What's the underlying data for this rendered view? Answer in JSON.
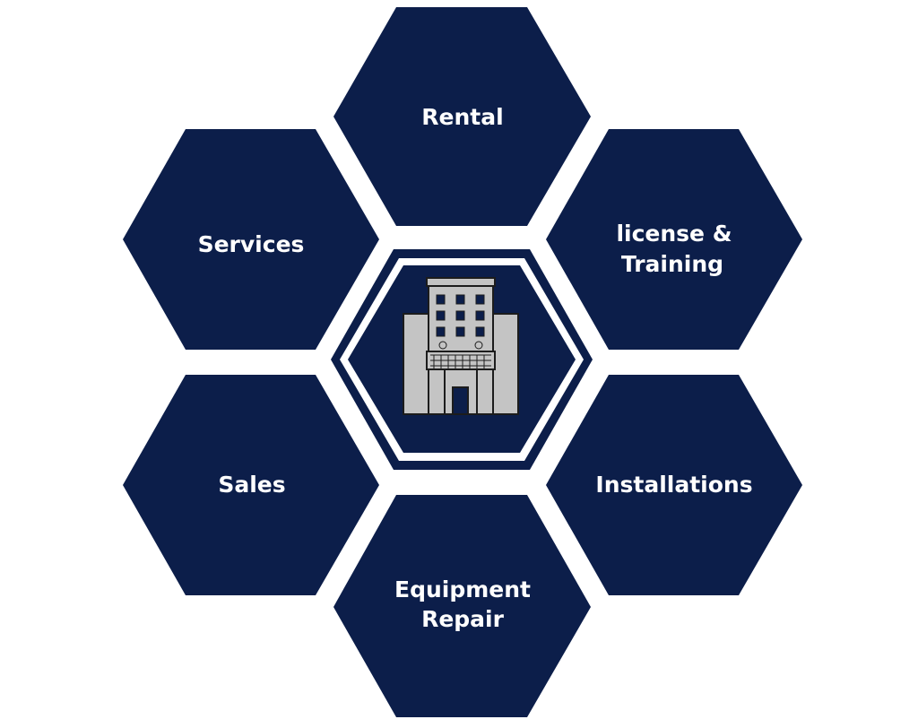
{
  "diagram": {
    "colors": {
      "hex_fill": "#0c1e4a",
      "background": "#ffffff",
      "building_fill": "#c4c4c4",
      "building_outline": "#1c1c1c",
      "label": "#ffffff"
    },
    "center_icon": "building-icon",
    "hexagons": {
      "rental": {
        "line1": "Rental"
      },
      "license": {
        "line1": "license &",
        "line2": "Training"
      },
      "services": {
        "line1": "Services"
      },
      "installations": {
        "line1": "Installations"
      },
      "sales": {
        "line1": "Sales"
      },
      "repair": {
        "line1": "Equipment",
        "line2": "Repair"
      }
    }
  }
}
